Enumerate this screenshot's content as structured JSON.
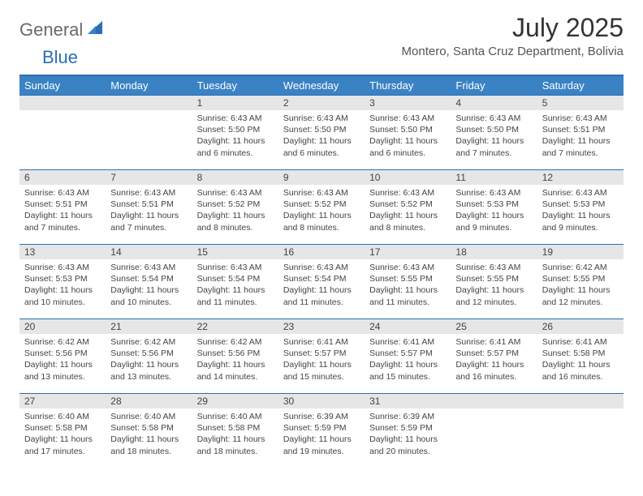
{
  "logo": {
    "text1": "General",
    "text2": "Blue"
  },
  "title": "July 2025",
  "location": "Montero, Santa Cruz Department, Bolivia",
  "colors": {
    "header_bg": "#3a82c4",
    "header_border": "#2a6fb5",
    "daynum_bg": "#e6e6e6",
    "text": "#444444",
    "logo_gray": "#6a6a6a",
    "logo_blue": "#2a6fb5"
  },
  "day_names": [
    "Sunday",
    "Monday",
    "Tuesday",
    "Wednesday",
    "Thursday",
    "Friday",
    "Saturday"
  ],
  "weeks": [
    [
      null,
      null,
      {
        "n": "1",
        "sr": "Sunrise: 6:43 AM",
        "ss": "Sunset: 5:50 PM",
        "dl": "Daylight: 11 hours and 6 minutes."
      },
      {
        "n": "2",
        "sr": "Sunrise: 6:43 AM",
        "ss": "Sunset: 5:50 PM",
        "dl": "Daylight: 11 hours and 6 minutes."
      },
      {
        "n": "3",
        "sr": "Sunrise: 6:43 AM",
        "ss": "Sunset: 5:50 PM",
        "dl": "Daylight: 11 hours and 6 minutes."
      },
      {
        "n": "4",
        "sr": "Sunrise: 6:43 AM",
        "ss": "Sunset: 5:50 PM",
        "dl": "Daylight: 11 hours and 7 minutes."
      },
      {
        "n": "5",
        "sr": "Sunrise: 6:43 AM",
        "ss": "Sunset: 5:51 PM",
        "dl": "Daylight: 11 hours and 7 minutes."
      }
    ],
    [
      {
        "n": "6",
        "sr": "Sunrise: 6:43 AM",
        "ss": "Sunset: 5:51 PM",
        "dl": "Daylight: 11 hours and 7 minutes."
      },
      {
        "n": "7",
        "sr": "Sunrise: 6:43 AM",
        "ss": "Sunset: 5:51 PM",
        "dl": "Daylight: 11 hours and 7 minutes."
      },
      {
        "n": "8",
        "sr": "Sunrise: 6:43 AM",
        "ss": "Sunset: 5:52 PM",
        "dl": "Daylight: 11 hours and 8 minutes."
      },
      {
        "n": "9",
        "sr": "Sunrise: 6:43 AM",
        "ss": "Sunset: 5:52 PM",
        "dl": "Daylight: 11 hours and 8 minutes."
      },
      {
        "n": "10",
        "sr": "Sunrise: 6:43 AM",
        "ss": "Sunset: 5:52 PM",
        "dl": "Daylight: 11 hours and 8 minutes."
      },
      {
        "n": "11",
        "sr": "Sunrise: 6:43 AM",
        "ss": "Sunset: 5:53 PM",
        "dl": "Daylight: 11 hours and 9 minutes."
      },
      {
        "n": "12",
        "sr": "Sunrise: 6:43 AM",
        "ss": "Sunset: 5:53 PM",
        "dl": "Daylight: 11 hours and 9 minutes."
      }
    ],
    [
      {
        "n": "13",
        "sr": "Sunrise: 6:43 AM",
        "ss": "Sunset: 5:53 PM",
        "dl": "Daylight: 11 hours and 10 minutes."
      },
      {
        "n": "14",
        "sr": "Sunrise: 6:43 AM",
        "ss": "Sunset: 5:54 PM",
        "dl": "Daylight: 11 hours and 10 minutes."
      },
      {
        "n": "15",
        "sr": "Sunrise: 6:43 AM",
        "ss": "Sunset: 5:54 PM",
        "dl": "Daylight: 11 hours and 11 minutes."
      },
      {
        "n": "16",
        "sr": "Sunrise: 6:43 AM",
        "ss": "Sunset: 5:54 PM",
        "dl": "Daylight: 11 hours and 11 minutes."
      },
      {
        "n": "17",
        "sr": "Sunrise: 6:43 AM",
        "ss": "Sunset: 5:55 PM",
        "dl": "Daylight: 11 hours and 11 minutes."
      },
      {
        "n": "18",
        "sr": "Sunrise: 6:43 AM",
        "ss": "Sunset: 5:55 PM",
        "dl": "Daylight: 11 hours and 12 minutes."
      },
      {
        "n": "19",
        "sr": "Sunrise: 6:42 AM",
        "ss": "Sunset: 5:55 PM",
        "dl": "Daylight: 11 hours and 12 minutes."
      }
    ],
    [
      {
        "n": "20",
        "sr": "Sunrise: 6:42 AM",
        "ss": "Sunset: 5:56 PM",
        "dl": "Daylight: 11 hours and 13 minutes."
      },
      {
        "n": "21",
        "sr": "Sunrise: 6:42 AM",
        "ss": "Sunset: 5:56 PM",
        "dl": "Daylight: 11 hours and 13 minutes."
      },
      {
        "n": "22",
        "sr": "Sunrise: 6:42 AM",
        "ss": "Sunset: 5:56 PM",
        "dl": "Daylight: 11 hours and 14 minutes."
      },
      {
        "n": "23",
        "sr": "Sunrise: 6:41 AM",
        "ss": "Sunset: 5:57 PM",
        "dl": "Daylight: 11 hours and 15 minutes."
      },
      {
        "n": "24",
        "sr": "Sunrise: 6:41 AM",
        "ss": "Sunset: 5:57 PM",
        "dl": "Daylight: 11 hours and 15 minutes."
      },
      {
        "n": "25",
        "sr": "Sunrise: 6:41 AM",
        "ss": "Sunset: 5:57 PM",
        "dl": "Daylight: 11 hours and 16 minutes."
      },
      {
        "n": "26",
        "sr": "Sunrise: 6:41 AM",
        "ss": "Sunset: 5:58 PM",
        "dl": "Daylight: 11 hours and 16 minutes."
      }
    ],
    [
      {
        "n": "27",
        "sr": "Sunrise: 6:40 AM",
        "ss": "Sunset: 5:58 PM",
        "dl": "Daylight: 11 hours and 17 minutes."
      },
      {
        "n": "28",
        "sr": "Sunrise: 6:40 AM",
        "ss": "Sunset: 5:58 PM",
        "dl": "Daylight: 11 hours and 18 minutes."
      },
      {
        "n": "29",
        "sr": "Sunrise: 6:40 AM",
        "ss": "Sunset: 5:58 PM",
        "dl": "Daylight: 11 hours and 18 minutes."
      },
      {
        "n": "30",
        "sr": "Sunrise: 6:39 AM",
        "ss": "Sunset: 5:59 PM",
        "dl": "Daylight: 11 hours and 19 minutes."
      },
      {
        "n": "31",
        "sr": "Sunrise: 6:39 AM",
        "ss": "Sunset: 5:59 PM",
        "dl": "Daylight: 11 hours and 20 minutes."
      },
      null,
      null
    ]
  ]
}
